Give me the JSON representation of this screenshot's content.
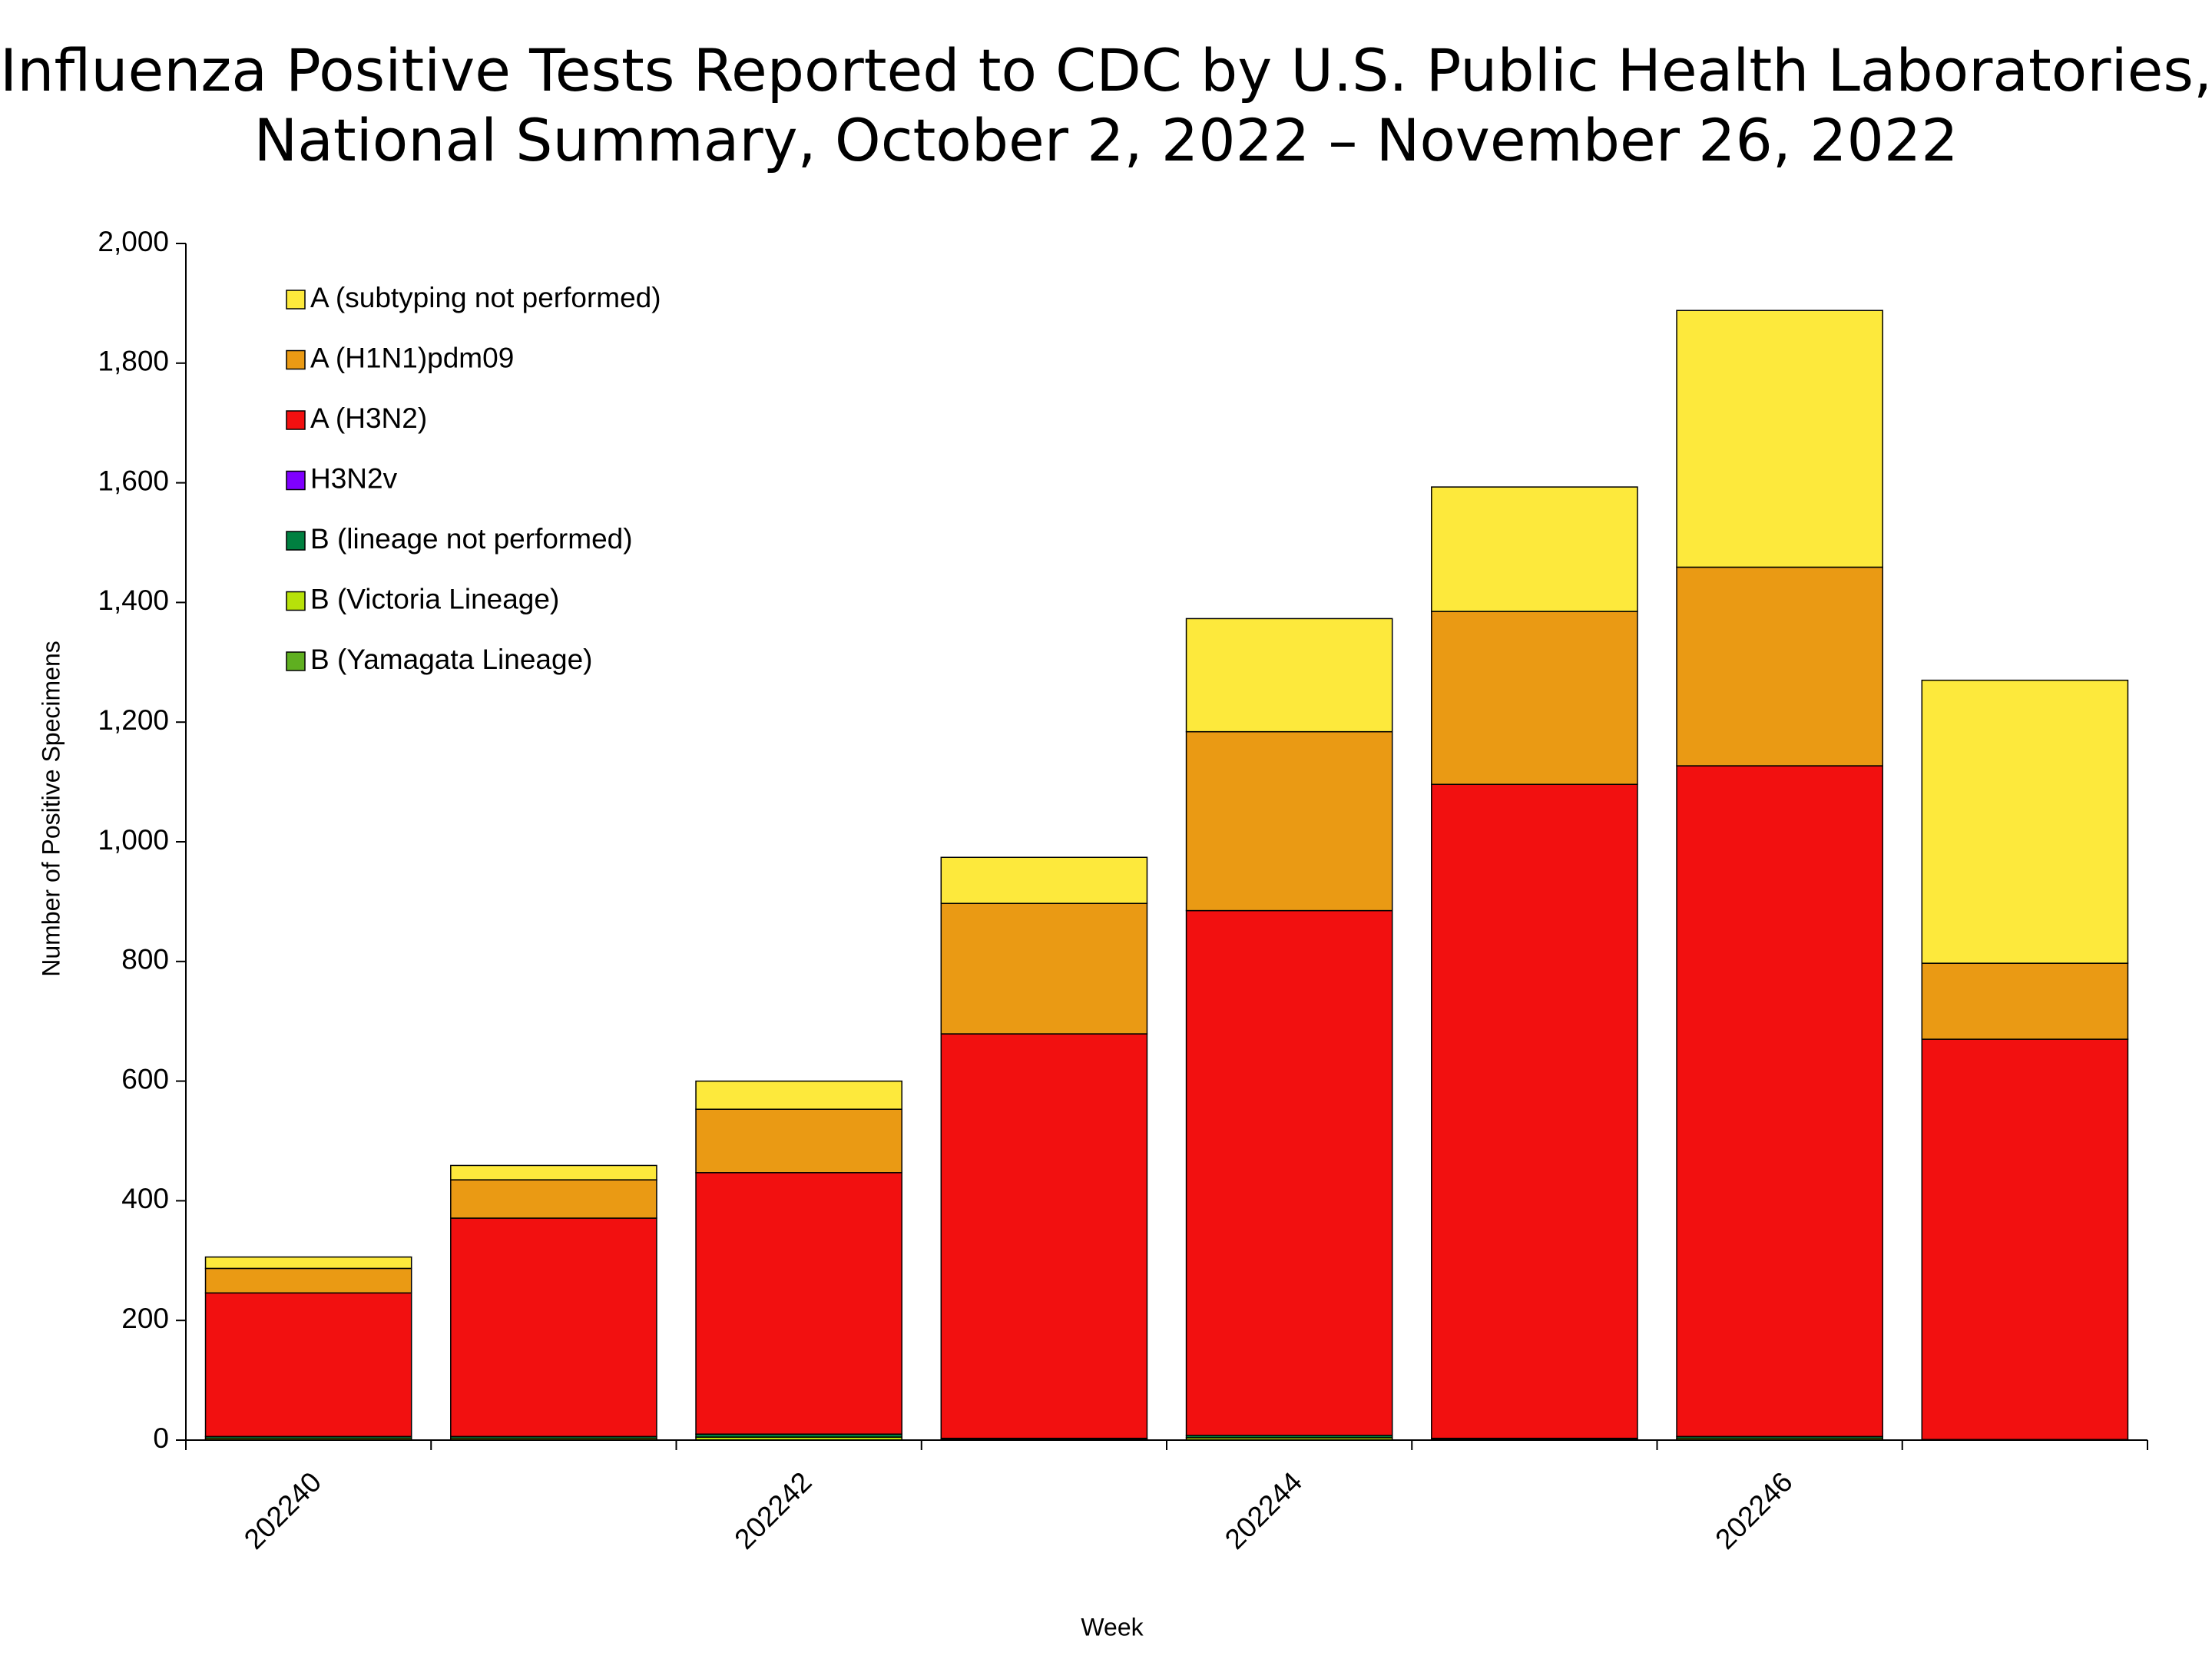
{
  "chart_data": {
    "type": "stacked-bar",
    "title": [
      "Influenza Positive Tests Reported to CDC by U.S. Public Health Laboratories,",
      "National Summary, October 2, 2022 – November 26, 2022"
    ],
    "x_label": "Week",
    "y_label": "Number of Positive Specimens",
    "categories": [
      "202240",
      null,
      "202242",
      null,
      "202244",
      null,
      "202246",
      null
    ],
    "series": [
      {
        "name": "A (subtyping not performed)",
        "color": "#fde93c",
        "values": [
          19,
          24,
          47,
          77,
          189,
          208,
          429,
          473
        ]
      },
      {
        "name": "A (H1N1)pdm09",
        "color": "#ea9a14",
        "values": [
          41,
          64,
          106,
          218,
          299,
          289,
          332,
          127
        ]
      },
      {
        "name": "A (H3N2)",
        "color": "#f21010",
        "values": [
          240,
          365,
          437,
          676,
          877,
          1093,
          1121,
          669
        ]
      },
      {
        "name": "H3N2v",
        "color": "#7f00ff",
        "values": [
          0,
          0,
          0,
          0,
          0,
          0,
          0,
          0
        ]
      },
      {
        "name": "B (lineage not performed)",
        "color": "#008040",
        "values": [
          3,
          3,
          5,
          2,
          4,
          2,
          3,
          1
        ]
      },
      {
        "name": "B (Victoria Lineage)",
        "color": "#b7e10a",
        "values": [
          3,
          3,
          5,
          1,
          4,
          1,
          3,
          0
        ]
      },
      {
        "name": "B (Yamagata Lineage)",
        "color": "#5faf20",
        "values": [
          0,
          0,
          0,
          0,
          0,
          0,
          0,
          0
        ]
      }
    ],
    "ylim": [
      0,
      2000
    ],
    "yticks": [
      0,
      200,
      400,
      600,
      800,
      {
        "value": 1000,
        "label": "1,000"
      },
      {
        "value": 1200,
        "label": "1,200"
      },
      {
        "value": 1400,
        "label": "1,400"
      },
      {
        "value": 1600,
        "label": "1,600"
      },
      {
        "value": 1800,
        "label": "1,800"
      },
      {
        "value": 2000,
        "label": "2,000"
      }
    ],
    "grid": false,
    "legend": "upper-left"
  }
}
